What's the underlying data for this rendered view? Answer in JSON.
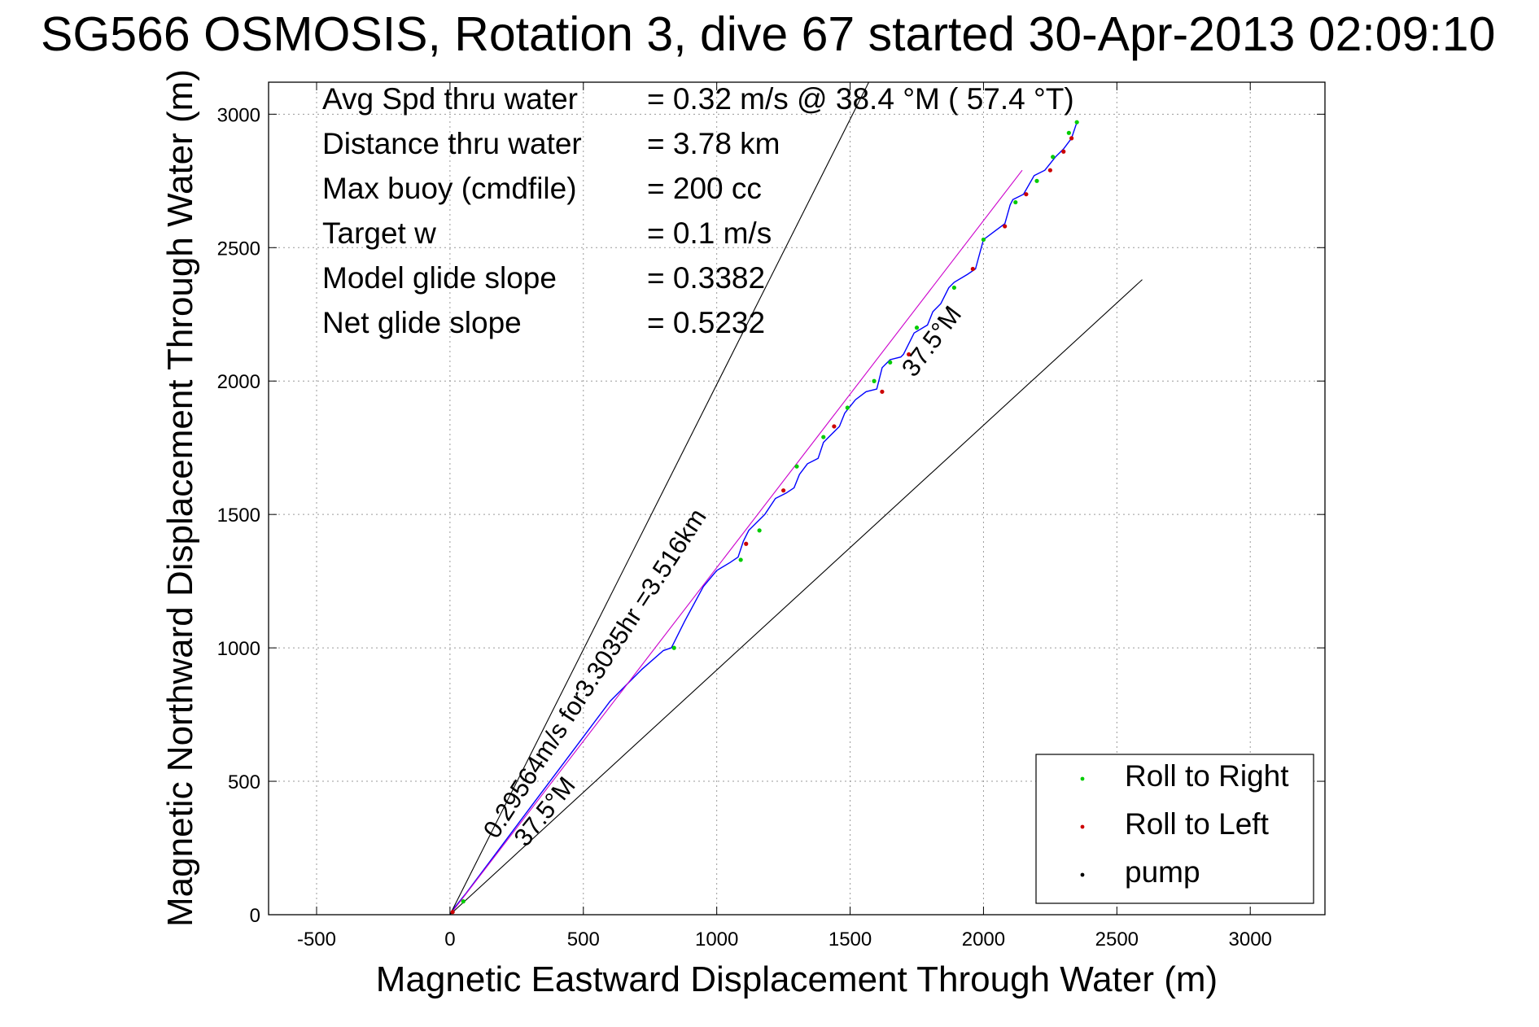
{
  "chart_data": {
    "type": "line",
    "title": "SG566 OSMOSIS, Rotation 3, dive 67 started 30-Apr-2013 02:09:10",
    "xlabel": "Magnetic Eastward Displacement Through Water (m)",
    "ylabel": "Magnetic Northward Displacement Through Water (m)",
    "xlim": [
      -680,
      3280
    ],
    "ylim": [
      0,
      3120
    ],
    "xticks": [
      -500,
      0,
      500,
      1000,
      1500,
      2000,
      2500,
      3000
    ],
    "yticks": [
      0,
      500,
      1000,
      1500,
      2000,
      2500,
      3000
    ],
    "grid": true,
    "legend_position": "bottom-right",
    "legend": [
      {
        "label": "Roll to Right",
        "color": "#00cc00"
      },
      {
        "label": "Roll to Left",
        "color": "#cc0000"
      },
      {
        "label": "pump",
        "color": "#000000"
      }
    ],
    "info_lines": [
      {
        "label": "Avg Spd thru water",
        "value": "=  0.32 m/s @  38.4 °M ( 57.4 °T)"
      },
      {
        "label": "Distance thru water",
        "value": "=  3.78 km"
      },
      {
        "label": "Max buoy (cmdfile)",
        "value": "= 200 cc"
      },
      {
        "label": "Target w",
        "value": "= 0.1 m/s"
      },
      {
        "label": "Model glide slope",
        "value": "= 0.3382"
      },
      {
        "label": "Net glide slope",
        "value": "= 0.5232"
      }
    ],
    "annotations": {
      "speed_label": "0.29564m/s for3.3035hr =3.516km",
      "upper_heading_label": "37.5°M",
      "lower_heading_label": "37.5°M"
    },
    "series": [
      {
        "name": "track",
        "color": "#0000ff",
        "x": [
          0,
          20,
          60,
          150,
          300,
          450,
          600,
          720,
          800,
          830,
          840,
          880,
          950,
          1000,
          1050,
          1080,
          1100,
          1120,
          1150,
          1180,
          1220,
          1260,
          1290,
          1310,
          1340,
          1380,
          1400,
          1440,
          1460,
          1480,
          1520,
          1560,
          1600,
          1620,
          1650,
          1690,
          1700,
          1740,
          1790,
          1810,
          1840,
          1870,
          1890,
          1940,
          1970,
          2000,
          2040,
          2080,
          2100,
          2110,
          2150,
          2190,
          2230,
          2270,
          2300,
          2330,
          2350
        ],
        "y": [
          0,
          30,
          80,
          200,
          400,
          600,
          800,
          920,
          990,
          1000,
          1020,
          1100,
          1230,
          1290,
          1320,
          1340,
          1400,
          1440,
          1470,
          1500,
          1560,
          1580,
          1600,
          1650,
          1690,
          1710,
          1770,
          1810,
          1830,
          1880,
          1930,
          1960,
          1970,
          2050,
          2080,
          2090,
          2100,
          2180,
          2210,
          2260,
          2290,
          2350,
          2370,
          2400,
          2420,
          2530,
          2560,
          2590,
          2660,
          2680,
          2700,
          2770,
          2790,
          2840,
          2870,
          2910,
          2970
        ]
      },
      {
        "name": "roll-right",
        "color": "#00cc00",
        "x": [
          50,
          840,
          1090,
          1160,
          1300,
          1400,
          1490,
          1590,
          1650,
          1750,
          1890,
          2000,
          2120,
          2200,
          2260,
          2320,
          2350
        ],
        "y": [
          50,
          1000,
          1330,
          1440,
          1680,
          1790,
          1900,
          2000,
          2070,
          2200,
          2350,
          2530,
          2670,
          2750,
          2840,
          2930,
          2970
        ]
      },
      {
        "name": "roll-left",
        "color": "#cc0000",
        "x": [
          10,
          1110,
          1250,
          1440,
          1620,
          1720,
          1960,
          2080,
          2160,
          2250,
          2300,
          2330
        ],
        "y": [
          10,
          1390,
          1590,
          1830,
          1960,
          2100,
          2420,
          2580,
          2700,
          2790,
          2860,
          2910
        ]
      },
      {
        "name": "model-direction",
        "color": "#cc00cc",
        "x": [
          0,
          2145
        ],
        "y": [
          0,
          2790
        ]
      },
      {
        "name": "cone-upper",
        "color": "#000000",
        "x": [
          0,
          1570
        ],
        "y": [
          0,
          3120
        ]
      },
      {
        "name": "cone-lower",
        "color": "#000000",
        "x": [
          0,
          2595
        ],
        "y": [
          0,
          2380
        ]
      }
    ]
  }
}
